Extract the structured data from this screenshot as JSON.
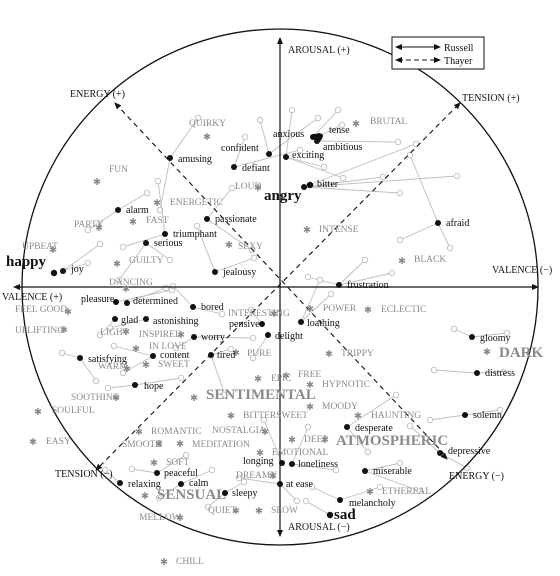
{
  "axes": {
    "arousal_pos": "AROUSAL (+)",
    "arousal_neg": "AROUSAL (−)",
    "valence_pos": "VALENCE (+)",
    "valence_neg": "VALENCE (−)",
    "energy_pos": "ENERGY (+)",
    "energy_neg": "ENERGY (−)",
    "tension_pos": "TENSION (+)",
    "tension_neg": "TENSION (−)"
  },
  "legend": {
    "russell": "Russell",
    "thayer": "Thayer"
  },
  "emotions": [
    {
      "label": "anxious",
      "big": false
    },
    {
      "label": "tense",
      "big": false
    },
    {
      "label": "ambitious",
      "big": false
    },
    {
      "label": "confident",
      "big": false
    },
    {
      "label": "amusing",
      "big": false
    },
    {
      "label": "defiant",
      "big": false
    },
    {
      "label": "exciting",
      "big": false
    },
    {
      "label": "bitter",
      "big": false
    },
    {
      "label": "angry",
      "big": true
    },
    {
      "label": "alarm",
      "big": false
    },
    {
      "label": "passionate",
      "big": false
    },
    {
      "label": "triumphant",
      "big": false
    },
    {
      "label": "serious",
      "big": false
    },
    {
      "label": "afraid",
      "big": false
    },
    {
      "label": "happy",
      "big": true
    },
    {
      "label": "joy",
      "big": false
    },
    {
      "label": "jealousy",
      "big": false
    },
    {
      "label": "frustration",
      "big": false
    },
    {
      "label": "pleasure",
      "big": false
    },
    {
      "label": "determined",
      "big": false
    },
    {
      "label": "bored",
      "big": false
    },
    {
      "label": "glad",
      "big": false
    },
    {
      "label": "astonishing",
      "big": false
    },
    {
      "label": "pensive",
      "big": false
    },
    {
      "label": "loathing",
      "big": false
    },
    {
      "label": "worry",
      "big": false
    },
    {
      "label": "delight",
      "big": false
    },
    {
      "label": "gloomy",
      "big": false
    },
    {
      "label": "satisfying",
      "big": false
    },
    {
      "label": "content",
      "big": false
    },
    {
      "label": "tired",
      "big": false
    },
    {
      "label": "distress",
      "big": false
    },
    {
      "label": "hope",
      "big": false
    },
    {
      "label": "solemn",
      "big": false
    },
    {
      "label": "desperate",
      "big": false
    },
    {
      "label": "depressive",
      "big": false
    },
    {
      "label": "longing",
      "big": false
    },
    {
      "label": "loneliness",
      "big": false
    },
    {
      "label": "miserable",
      "big": false
    },
    {
      "label": "peaceful",
      "big": false
    },
    {
      "label": "relaxing",
      "big": false
    },
    {
      "label": "calm",
      "big": false
    },
    {
      "label": "at ease",
      "big": false
    },
    {
      "label": "sleepy",
      "big": false
    },
    {
      "label": "melancholy",
      "big": false
    },
    {
      "label": "sad",
      "big": true
    }
  ],
  "tags": [
    {
      "label": "BRUTAL"
    },
    {
      "label": "QUIRKY"
    },
    {
      "label": "FUN"
    },
    {
      "label": "LOUD"
    },
    {
      "label": "ENERGETIC"
    },
    {
      "label": "PARTY"
    },
    {
      "label": "FAST"
    },
    {
      "label": "SEXY"
    },
    {
      "label": "INTENSE"
    },
    {
      "label": "UPBEAT"
    },
    {
      "label": "GUILTY"
    },
    {
      "label": "BLACK"
    },
    {
      "label": "DANCING"
    },
    {
      "label": "FEEL GOOD"
    },
    {
      "label": "POWER"
    },
    {
      "label": "ECLECTIC"
    },
    {
      "label": "INTERESTING"
    },
    {
      "label": "UPLIFTING"
    },
    {
      "label": "LIGHT"
    },
    {
      "label": "INSPIRED"
    },
    {
      "label": "DARK",
      "big": true
    },
    {
      "label": "SWEET"
    },
    {
      "label": "IN LOVE"
    },
    {
      "label": "PURE"
    },
    {
      "label": "TRIPPY"
    },
    {
      "label": "WARM"
    },
    {
      "label": "EPIC"
    },
    {
      "label": "FREE"
    },
    {
      "label": "HYPNOTIC"
    },
    {
      "label": "SENTIMENTAL",
      "big": true
    },
    {
      "label": "SOOTHING"
    },
    {
      "label": "SOULFUL"
    },
    {
      "label": "MOODY"
    },
    {
      "label": "BITTERSWEET"
    },
    {
      "label": "HAUNTING"
    },
    {
      "label": "ROMANTIC"
    },
    {
      "label": "NOSTALGIA"
    },
    {
      "label": "EASY"
    },
    {
      "label": "SMOOTH"
    },
    {
      "label": "MEDITATION"
    },
    {
      "label": "DEEP"
    },
    {
      "label": "ATMOSPHERIC",
      "big": true
    },
    {
      "label": "EMOTIONAL"
    },
    {
      "label": "SOFT"
    },
    {
      "label": "DREAMY"
    },
    {
      "label": "SENSUAL",
      "big": true
    },
    {
      "label": "ETHEREAL"
    },
    {
      "label": "MELLOW"
    },
    {
      "label": "QUIET"
    },
    {
      "label": "SLOW"
    },
    {
      "label": "CHILL"
    }
  ],
  "colors": {
    "line": "#111111",
    "connector": "#bdbdbd",
    "tag": "#8a8a8a"
  }
}
